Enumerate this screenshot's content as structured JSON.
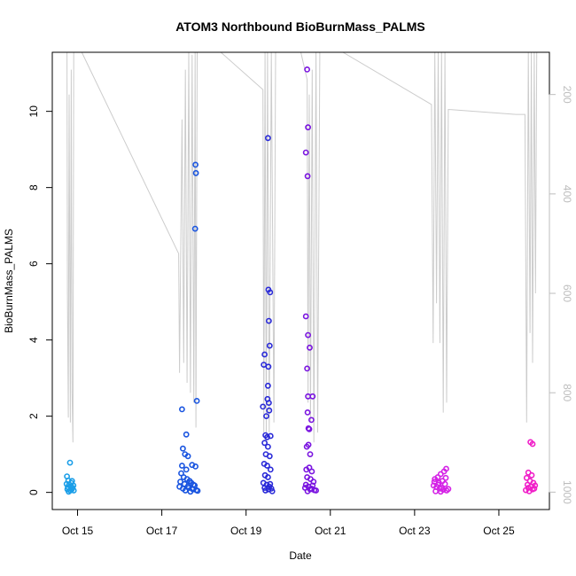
{
  "chart_data": {
    "type": "scatter",
    "title": "ATOM3 Northbound BioBurnMass_PALMS",
    "xlabel": "Date",
    "ylabel": "BioBurnMass_PALMS",
    "x_tick_labels": [
      "Oct 15",
      "Oct 17",
      "Oct 19",
      "Oct 21",
      "Oct 23",
      "Oct 25"
    ],
    "x_tick_values": [
      15,
      17,
      19,
      21,
      23,
      25
    ],
    "xlim": [
      14.4,
      26.2
    ],
    "y_tick_labels": [
      "0",
      "2",
      "4",
      "6",
      "8",
      "10"
    ],
    "y_tick_values": [
      0,
      2,
      4,
      6,
      8,
      10
    ],
    "ylim": [
      -0.45,
      11.55
    ],
    "right_axis": {
      "tick_labels": [
        "200",
        "400",
        "600",
        "800",
        "1000"
      ],
      "tick_values": [
        200,
        400,
        600,
        800,
        1000
      ],
      "lim": [
        1035,
        115
      ],
      "color": "#bdbdbd"
    },
    "pressure_profile": {
      "color": "#cccccc",
      "points": [
        [
          14.75,
          110
        ],
        [
          14.76,
          600
        ],
        [
          14.78,
          850
        ],
        [
          14.8,
          200
        ],
        [
          14.83,
          860
        ],
        [
          14.85,
          150
        ],
        [
          14.87,
          800
        ],
        [
          14.89,
          900
        ],
        [
          14.91,
          110
        ],
        [
          15.1,
          110
        ],
        [
          17.4,
          520
        ],
        [
          17.42,
          760
        ],
        [
          17.48,
          250
        ],
        [
          17.52,
          740
        ],
        [
          17.56,
          150
        ],
        [
          17.6,
          780
        ],
        [
          17.64,
          110
        ],
        [
          17.68,
          800
        ],
        [
          17.72,
          120
        ],
        [
          17.76,
          820
        ],
        [
          17.79,
          110
        ],
        [
          17.81,
          870
        ],
        [
          17.84,
          110
        ],
        [
          18.4,
          110
        ],
        [
          19.4,
          190
        ],
        [
          19.42,
          880
        ],
        [
          19.45,
          110
        ],
        [
          19.48,
          900
        ],
        [
          19.51,
          110
        ],
        [
          19.55,
          880
        ],
        [
          19.6,
          110
        ],
        [
          19.66,
          860
        ],
        [
          19.7,
          110
        ],
        [
          20.3,
          110
        ],
        [
          20.45,
          170
        ],
        [
          20.47,
          820
        ],
        [
          20.5,
          200
        ],
        [
          20.53,
          860
        ],
        [
          20.57,
          150
        ],
        [
          20.61,
          900
        ],
        [
          20.66,
          110
        ],
        [
          20.7,
          880
        ],
        [
          20.75,
          110
        ],
        [
          21.3,
          110
        ],
        [
          23.4,
          220
        ],
        [
          23.44,
          700
        ],
        [
          23.48,
          110
        ],
        [
          23.52,
          620
        ],
        [
          23.56,
          110
        ],
        [
          23.6,
          700
        ],
        [
          23.64,
          110
        ],
        [
          23.68,
          840
        ],
        [
          23.72,
          110
        ],
        [
          23.76,
          820
        ],
        [
          23.8,
          230
        ],
        [
          25.4,
          240
        ],
        [
          25.62,
          240
        ],
        [
          25.66,
          860
        ],
        [
          25.7,
          110
        ],
        [
          25.74,
          680
        ],
        [
          25.77,
          110
        ],
        [
          25.8,
          740
        ],
        [
          25.84,
          110
        ],
        [
          25.87,
          600
        ],
        [
          25.9,
          110
        ]
      ]
    },
    "series": [
      {
        "color": "#1a9ee8",
        "points": [
          [
            14.82,
            0.78
          ],
          [
            14.75,
            0.42
          ],
          [
            14.78,
            0.31
          ],
          [
            14.8,
            0.2
          ],
          [
            14.85,
            0.25
          ],
          [
            14.88,
            0.12
          ],
          [
            14.91,
            0.05
          ],
          [
            14.76,
            0.08
          ],
          [
            14.84,
            0.15
          ],
          [
            14.79,
            0.02
          ],
          [
            14.87,
            0.3
          ],
          [
            14.9,
            0.18
          ],
          [
            14.83,
            0.05
          ],
          [
            14.77,
            0.14
          ],
          [
            14.86,
            0.08
          ],
          [
            14.74,
            0.22
          ]
        ]
      },
      {
        "color": "#1a55e0",
        "points": [
          [
            17.8,
            8.6
          ],
          [
            17.81,
            8.38
          ],
          [
            17.79,
            6.92
          ],
          [
            17.48,
            2.18
          ],
          [
            17.83,
            2.4
          ],
          [
            17.58,
            1.52
          ],
          [
            17.5,
            1.15
          ],
          [
            17.55,
            1.0
          ],
          [
            17.62,
            0.95
          ],
          [
            17.72,
            0.72
          ],
          [
            17.8,
            0.68
          ],
          [
            17.46,
            0.5
          ],
          [
            17.52,
            0.4
          ],
          [
            17.6,
            0.35
          ],
          [
            17.66,
            0.3
          ],
          [
            17.7,
            0.25
          ],
          [
            17.75,
            0.2
          ],
          [
            17.42,
            0.15
          ],
          [
            17.5,
            0.1
          ],
          [
            17.56,
            0.05
          ],
          [
            17.64,
            0.12
          ],
          [
            17.68,
            0.02
          ],
          [
            17.74,
            0.08
          ],
          [
            17.78,
            0.18
          ],
          [
            17.82,
            0.06
          ],
          [
            17.44,
            0.28
          ],
          [
            17.54,
            0.22
          ],
          [
            17.62,
            0.16
          ],
          [
            17.72,
            0.1
          ],
          [
            17.85,
            0.04
          ],
          [
            17.58,
            0.6
          ],
          [
            17.48,
            0.7
          ]
        ]
      },
      {
        "color": "#2a2ad8",
        "points": [
          [
            19.52,
            9.3
          ],
          [
            19.53,
            5.32
          ],
          [
            19.57,
            5.25
          ],
          [
            19.54,
            4.5
          ],
          [
            19.56,
            3.85
          ],
          [
            19.44,
            3.62
          ],
          [
            19.42,
            3.35
          ],
          [
            19.53,
            3.3
          ],
          [
            19.52,
            2.8
          ],
          [
            19.51,
            2.45
          ],
          [
            19.54,
            2.35
          ],
          [
            19.4,
            2.25
          ],
          [
            19.48,
            2.0
          ],
          [
            19.55,
            2.15
          ],
          [
            19.46,
            1.5
          ],
          [
            19.5,
            1.45
          ],
          [
            19.58,
            1.48
          ],
          [
            19.44,
            1.3
          ],
          [
            19.52,
            1.2
          ],
          [
            19.47,
            1.0
          ],
          [
            19.56,
            0.95
          ],
          [
            19.43,
            0.75
          ],
          [
            19.5,
            0.7
          ],
          [
            19.58,
            0.6
          ],
          [
            19.45,
            0.45
          ],
          [
            19.52,
            0.4
          ],
          [
            19.41,
            0.25
          ],
          [
            19.49,
            0.2
          ],
          [
            19.55,
            0.15
          ],
          [
            19.6,
            0.1
          ],
          [
            19.46,
            0.05
          ],
          [
            19.53,
            0.08
          ],
          [
            19.62,
            0.03
          ],
          [
            19.44,
            0.12
          ],
          [
            19.57,
            0.22
          ]
        ]
      },
      {
        "color": "#7a14e0",
        "points": [
          [
            20.45,
            11.1
          ],
          [
            20.47,
            9.58
          ],
          [
            20.42,
            8.92
          ],
          [
            20.46,
            8.3
          ],
          [
            20.42,
            4.62
          ],
          [
            20.47,
            4.13
          ],
          [
            20.51,
            3.8
          ],
          [
            20.45,
            3.25
          ],
          [
            20.47,
            2.52
          ],
          [
            20.58,
            2.52
          ],
          [
            20.46,
            2.1
          ],
          [
            20.55,
            1.9
          ],
          [
            20.48,
            1.68
          ],
          [
            20.5,
            1.66
          ],
          [
            20.44,
            1.2
          ],
          [
            20.48,
            1.25
          ],
          [
            20.52,
            1.0
          ],
          [
            20.43,
            0.6
          ],
          [
            20.5,
            0.65
          ],
          [
            20.56,
            0.55
          ],
          [
            20.45,
            0.4
          ],
          [
            20.53,
            0.35
          ],
          [
            20.6,
            0.28
          ],
          [
            20.42,
            0.2
          ],
          [
            20.48,
            0.15
          ],
          [
            20.55,
            0.1
          ],
          [
            20.62,
            0.06
          ],
          [
            20.46,
            0.03
          ],
          [
            20.52,
            0.08
          ],
          [
            20.66,
            0.05
          ],
          [
            20.58,
            0.18
          ],
          [
            20.4,
            0.12
          ]
        ]
      },
      {
        "color": "#d422e6",
        "points": [
          [
            23.75,
            0.62
          ],
          [
            23.7,
            0.55
          ],
          [
            23.62,
            0.48
          ],
          [
            23.55,
            0.4
          ],
          [
            23.48,
            0.35
          ],
          [
            23.66,
            0.3
          ],
          [
            23.58,
            0.25
          ],
          [
            23.72,
            0.22
          ],
          [
            23.45,
            0.18
          ],
          [
            23.52,
            0.14
          ],
          [
            23.6,
            0.1
          ],
          [
            23.68,
            0.07
          ],
          [
            23.76,
            0.05
          ],
          [
            23.5,
            0.03
          ],
          [
            23.64,
            0.12
          ],
          [
            23.56,
            0.2
          ],
          [
            23.8,
            0.09
          ],
          [
            23.47,
            0.28
          ],
          [
            23.74,
            0.38
          ],
          [
            23.62,
            0.02
          ]
        ]
      },
      {
        "color": "#f01ec8",
        "points": [
          [
            25.75,
            1.32
          ],
          [
            25.8,
            1.27
          ],
          [
            25.7,
            0.52
          ],
          [
            25.78,
            0.45
          ],
          [
            25.66,
            0.38
          ],
          [
            25.74,
            0.3
          ],
          [
            25.82,
            0.25
          ],
          [
            25.68,
            0.2
          ],
          [
            25.76,
            0.15
          ],
          [
            25.84,
            0.1
          ],
          [
            25.64,
            0.06
          ],
          [
            25.72,
            0.03
          ],
          [
            25.8,
            0.08
          ],
          [
            25.86,
            0.18
          ],
          [
            25.7,
            0.12
          ]
        ]
      }
    ]
  }
}
